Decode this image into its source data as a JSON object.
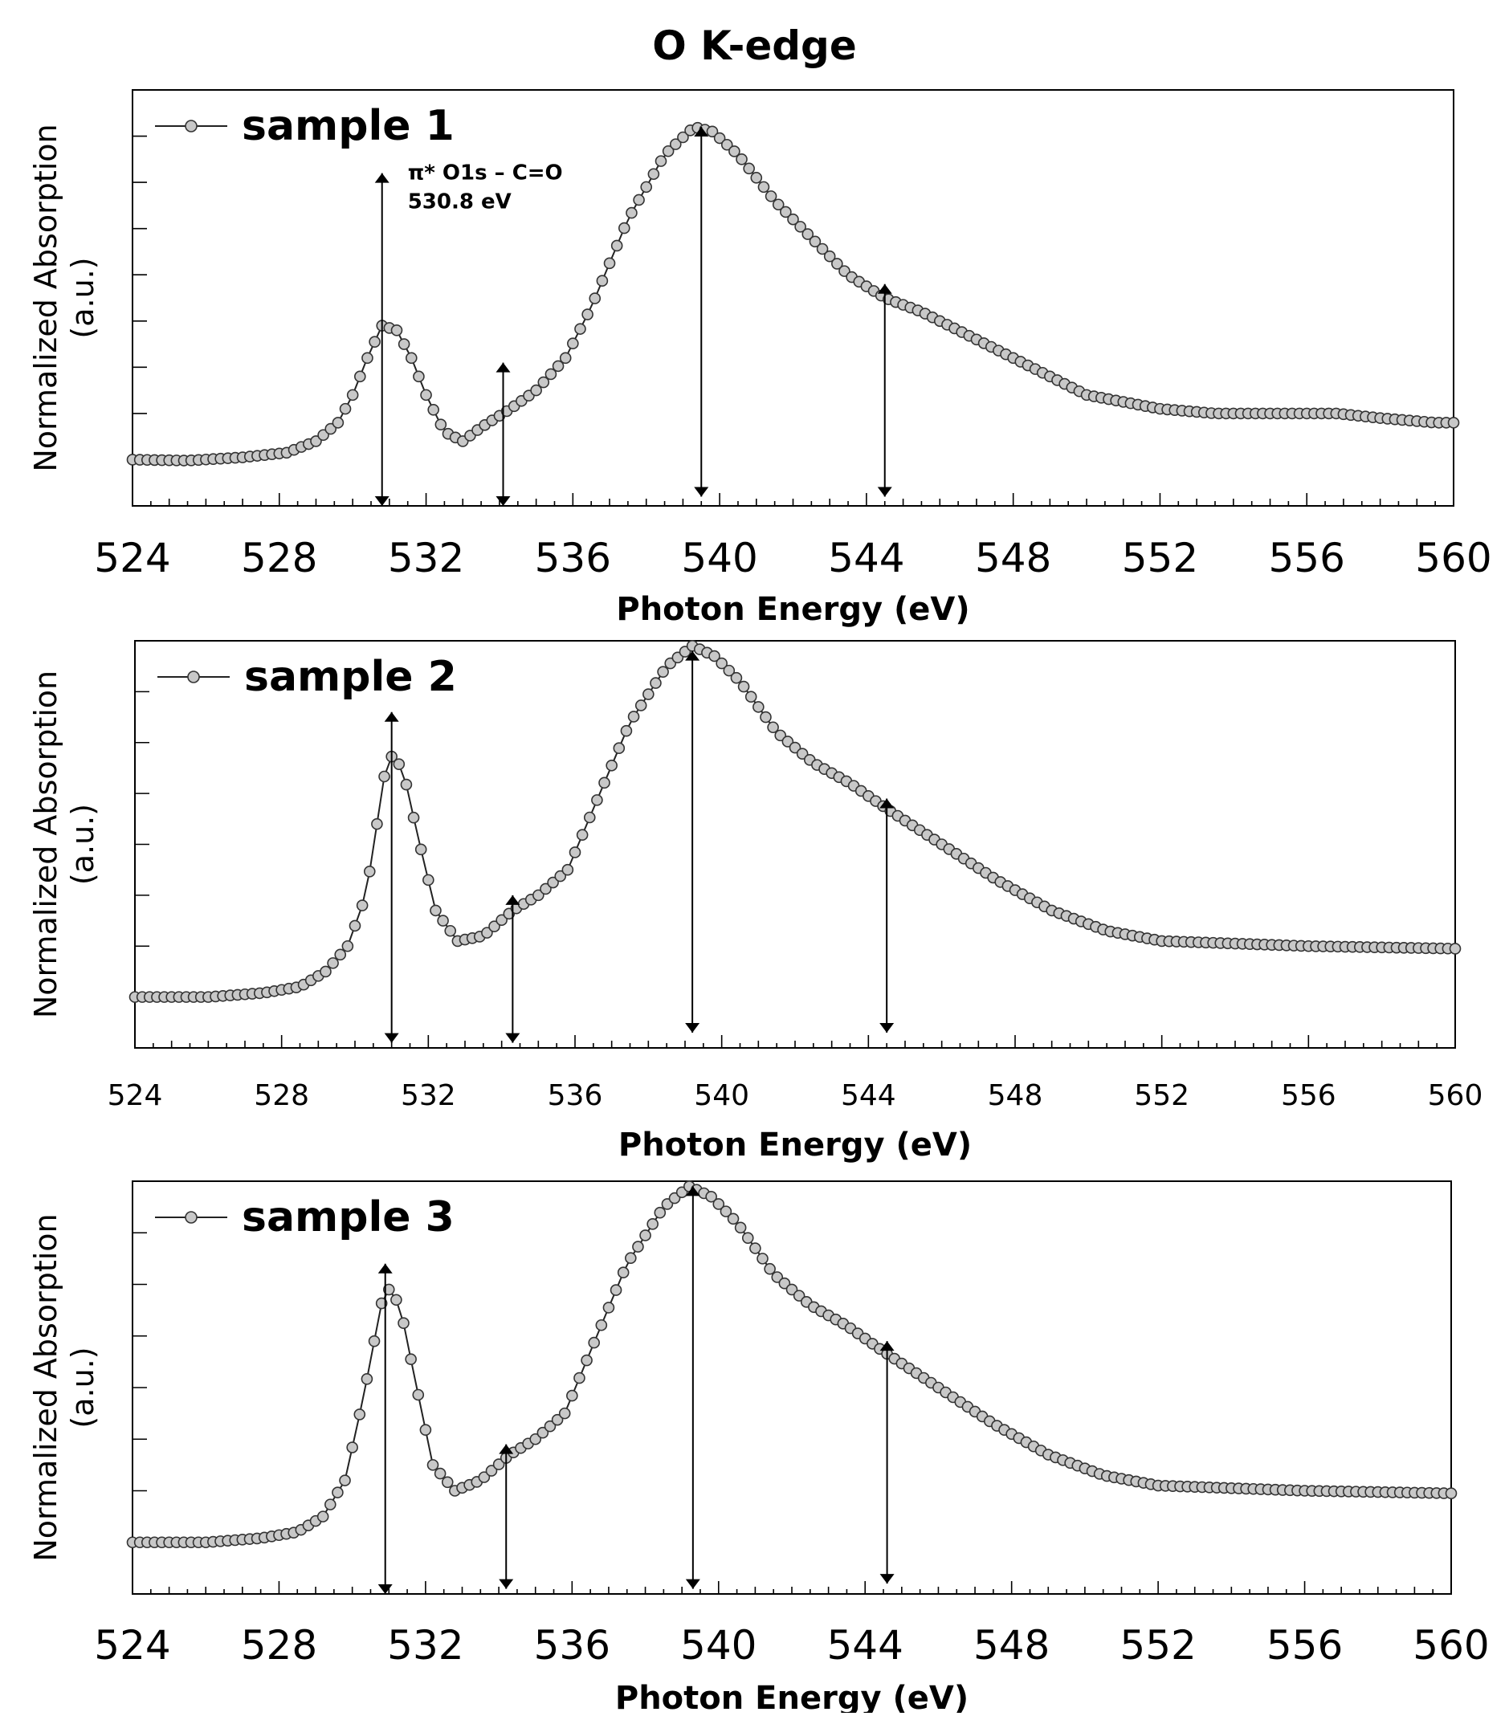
{
  "figure_title": "O K-edge",
  "chart_data": [
    {
      "type": "line",
      "marker": "circle",
      "title": "",
      "legend": "sample 1",
      "legend_position": "top-left",
      "xlabel": "Photon Energy (eV)",
      "ylabel": "Normalized Absorption",
      "ylabel2": "(a.u.)",
      "xlim": [
        524,
        560
      ],
      "ylim": [
        0,
        0.9
      ],
      "xticks": [
        524,
        528,
        532,
        536,
        540,
        544,
        548,
        552,
        556,
        560
      ],
      "xtick_labels": [
        "524",
        "528",
        "532",
        "536",
        "540",
        "544",
        "548",
        "552",
        "556",
        "560"
      ],
      "yticks_count": 8,
      "grid": false,
      "series": [
        {
          "name": "sample 1",
          "key_points": [
            [
              524.0,
              0.1
            ],
            [
              525.5,
              0.098
            ],
            [
              527.0,
              0.105
            ],
            [
              528.2,
              0.115
            ],
            [
              529.0,
              0.14
            ],
            [
              529.6,
              0.18
            ],
            [
              530.0,
              0.24
            ],
            [
              530.4,
              0.32
            ],
            [
              530.8,
              0.39
            ],
            [
              531.2,
              0.38
            ],
            [
              531.6,
              0.32
            ],
            [
              532.0,
              0.24
            ],
            [
              532.5,
              0.16
            ],
            [
              533.0,
              0.14
            ],
            [
              533.5,
              0.17
            ],
            [
              534.3,
              0.21
            ],
            [
              535.0,
              0.25
            ],
            [
              535.8,
              0.32
            ],
            [
              536.5,
              0.43
            ],
            [
              537.5,
              0.62
            ],
            [
              538.5,
              0.76
            ],
            [
              539.3,
              0.82
            ],
            [
              539.8,
              0.81
            ],
            [
              540.5,
              0.76
            ],
            [
              541.5,
              0.66
            ],
            [
              542.5,
              0.58
            ],
            [
              543.5,
              0.5
            ],
            [
              544.5,
              0.45
            ],
            [
              545.5,
              0.42
            ],
            [
              547.0,
              0.36
            ],
            [
              548.5,
              0.3
            ],
            [
              550.0,
              0.24
            ],
            [
              552.0,
              0.21
            ],
            [
              553.5,
              0.2
            ],
            [
              555.5,
              0.2
            ],
            [
              556.8,
              0.2
            ],
            [
              558.0,
              0.19
            ],
            [
              559.5,
              0.18
            ],
            [
              560.0,
              0.18
            ]
          ]
        }
      ],
      "annotation": {
        "line1": "π* O1s – C=O",
        "line2": "530.8 eV",
        "x": 531.5,
        "y": 0.72
      },
      "arrows": [
        {
          "x": 530.8,
          "y_top": 0.72,
          "y_bottom": 0.0
        },
        {
          "x": 534.1,
          "y_top": 0.31,
          "y_bottom": 0.0
        },
        {
          "x": 539.5,
          "y_top": 0.82,
          "y_bottom": 0.02
        },
        {
          "x": 544.5,
          "y_top": 0.48,
          "y_bottom": 0.02
        }
      ]
    },
    {
      "type": "line",
      "marker": "circle",
      "title": "",
      "legend": "sample 2",
      "legend_position": "top-left",
      "xlabel": "Photon Energy (eV)",
      "ylabel": "Normalized Absorption",
      "ylabel2": "(a.u.)",
      "xlim": [
        524,
        560
      ],
      "ylim": [
        0,
        0.8
      ],
      "xticks": [
        524,
        528,
        532,
        536,
        540,
        544,
        548,
        552,
        556,
        560
      ],
      "xtick_labels": [
        "524",
        "528",
        "532",
        "536",
        "540",
        "544",
        "548",
        "552",
        "556",
        "560"
      ],
      "yticks_count": 7,
      "grid": false,
      "series": [
        {
          "name": "sample 2",
          "key_points": [
            [
              524.0,
              0.1
            ],
            [
              526.0,
              0.1
            ],
            [
              527.5,
              0.108
            ],
            [
              528.5,
              0.12
            ],
            [
              529.2,
              0.15
            ],
            [
              529.8,
              0.2
            ],
            [
              530.3,
              0.3
            ],
            [
              530.9,
              0.58
            ],
            [
              531.3,
              0.55
            ],
            [
              531.7,
              0.42
            ],
            [
              532.2,
              0.27
            ],
            [
              532.8,
              0.21
            ],
            [
              533.5,
              0.22
            ],
            [
              534.3,
              0.27
            ],
            [
              535.0,
              0.3
            ],
            [
              535.8,
              0.35
            ],
            [
              536.5,
              0.47
            ],
            [
              537.5,
              0.64
            ],
            [
              538.5,
              0.75
            ],
            [
              539.2,
              0.79
            ],
            [
              539.8,
              0.77
            ],
            [
              540.5,
              0.72
            ],
            [
              541.5,
              0.62
            ],
            [
              542.5,
              0.56
            ],
            [
              543.5,
              0.52
            ],
            [
              544.5,
              0.47
            ],
            [
              546.0,
              0.4
            ],
            [
              547.5,
              0.33
            ],
            [
              549.0,
              0.27
            ],
            [
              550.5,
              0.23
            ],
            [
              552.0,
              0.21
            ],
            [
              554.0,
              0.205
            ],
            [
              556.0,
              0.2
            ],
            [
              560.0,
              0.195
            ]
          ]
        }
      ],
      "arrows": [
        {
          "x": 531.0,
          "y_top": 0.66,
          "y_bottom": 0.01
        },
        {
          "x": 534.3,
          "y_top": 0.3,
          "y_bottom": 0.01
        },
        {
          "x": 539.2,
          "y_top": 0.78,
          "y_bottom": 0.03
        },
        {
          "x": 544.5,
          "y_top": 0.49,
          "y_bottom": 0.03
        }
      ]
    },
    {
      "type": "line",
      "marker": "circle",
      "title": "",
      "legend": "sample 3",
      "legend_position": "top-left",
      "xlabel": "Photon Energy (eV)",
      "ylabel": "Normalized Absorption",
      "ylabel2": "(a.u.)",
      "xlim": [
        524,
        560
      ],
      "ylim": [
        0,
        0.8
      ],
      "xticks": [
        524,
        528,
        532,
        536,
        540,
        544,
        548,
        552,
        556,
        560
      ],
      "xtick_labels": [
        "524",
        "528",
        "532",
        "536",
        "540",
        "544",
        "548",
        "552",
        "556",
        "560"
      ],
      "yticks_count": 7,
      "grid": false,
      "series": [
        {
          "name": "sample 3",
          "key_points": [
            [
              524.0,
              0.1
            ],
            [
              526.0,
              0.1
            ],
            [
              527.5,
              0.108
            ],
            [
              528.5,
              0.12
            ],
            [
              529.2,
              0.15
            ],
            [
              529.8,
              0.22
            ],
            [
              530.3,
              0.38
            ],
            [
              530.9,
              0.6
            ],
            [
              531.3,
              0.56
            ],
            [
              531.7,
              0.42
            ],
            [
              532.2,
              0.25
            ],
            [
              532.8,
              0.2
            ],
            [
              533.5,
              0.22
            ],
            [
              534.3,
              0.27
            ],
            [
              535.0,
              0.3
            ],
            [
              535.8,
              0.35
            ],
            [
              536.5,
              0.47
            ],
            [
              537.5,
              0.64
            ],
            [
              538.5,
              0.75
            ],
            [
              539.2,
              0.79
            ],
            [
              539.8,
              0.77
            ],
            [
              540.5,
              0.72
            ],
            [
              541.5,
              0.62
            ],
            [
              542.5,
              0.56
            ],
            [
              543.5,
              0.52
            ],
            [
              544.5,
              0.47
            ],
            [
              546.0,
              0.4
            ],
            [
              547.5,
              0.33
            ],
            [
              549.0,
              0.27
            ],
            [
              550.5,
              0.23
            ],
            [
              552.0,
              0.21
            ],
            [
              554.0,
              0.205
            ],
            [
              556.0,
              0.2
            ],
            [
              560.0,
              0.195
            ]
          ]
        }
      ],
      "arrows": [
        {
          "x": 530.9,
          "y_top": 0.64,
          "y_bottom": 0.0
        },
        {
          "x": 534.2,
          "y_top": 0.29,
          "y_bottom": 0.01
        },
        {
          "x": 539.3,
          "y_top": 0.79,
          "y_bottom": 0.01
        },
        {
          "x": 544.6,
          "y_top": 0.49,
          "y_bottom": 0.02
        }
      ]
    }
  ]
}
